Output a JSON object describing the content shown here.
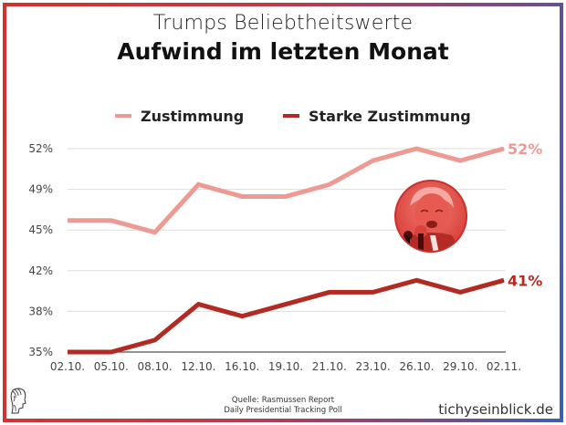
{
  "header": {
    "title": "Trumps Beliebtheitswerte",
    "subtitle": "Aufwind im letzten Monat"
  },
  "footer": {
    "source_line1": "Quelle: Rasmussen Report",
    "source_line2": "Daily Presidential Tracking Poll",
    "brand": "tichyseinblick.de",
    "logo_icon": "classical-head-logo-icon"
  },
  "decoration": {
    "portrait": "trump-portrait-red-tinted"
  },
  "colors": {
    "zustimmung": "#EE9A93",
    "starke_zustimmung": "#B22A22",
    "grid": "#dddddd",
    "baseline": "#555555"
  },
  "chart_data": {
    "type": "line",
    "title": "Trumps Beliebtheitswerte",
    "subtitle": "Aufwind im letzten Monat",
    "xlabel": "",
    "ylabel": "",
    "categories": [
      "02.10.",
      "05.10.",
      "08.10.",
      "12.10.",
      "16.10.",
      "19.10.",
      "21.10.",
      "23.10.",
      "26.10.",
      "29.10.",
      "02.11."
    ],
    "yticks": [
      "52%",
      "49%",
      "45%",
      "42%",
      "38%",
      "35%"
    ],
    "ylim": [
      35,
      52
    ],
    "grid": true,
    "legend": "top-center",
    "series": [
      {
        "name": "Zustimmung",
        "values": [
          46,
          46,
          45,
          49,
          48,
          48,
          49,
          51,
          52,
          51,
          52
        ],
        "end_label": "52%"
      },
      {
        "name": "Starke Zustimmung",
        "values": [
          35,
          35,
          36,
          39,
          38,
          39,
          40,
          40,
          41,
          40,
          41
        ],
        "end_label": "41%"
      }
    ]
  }
}
